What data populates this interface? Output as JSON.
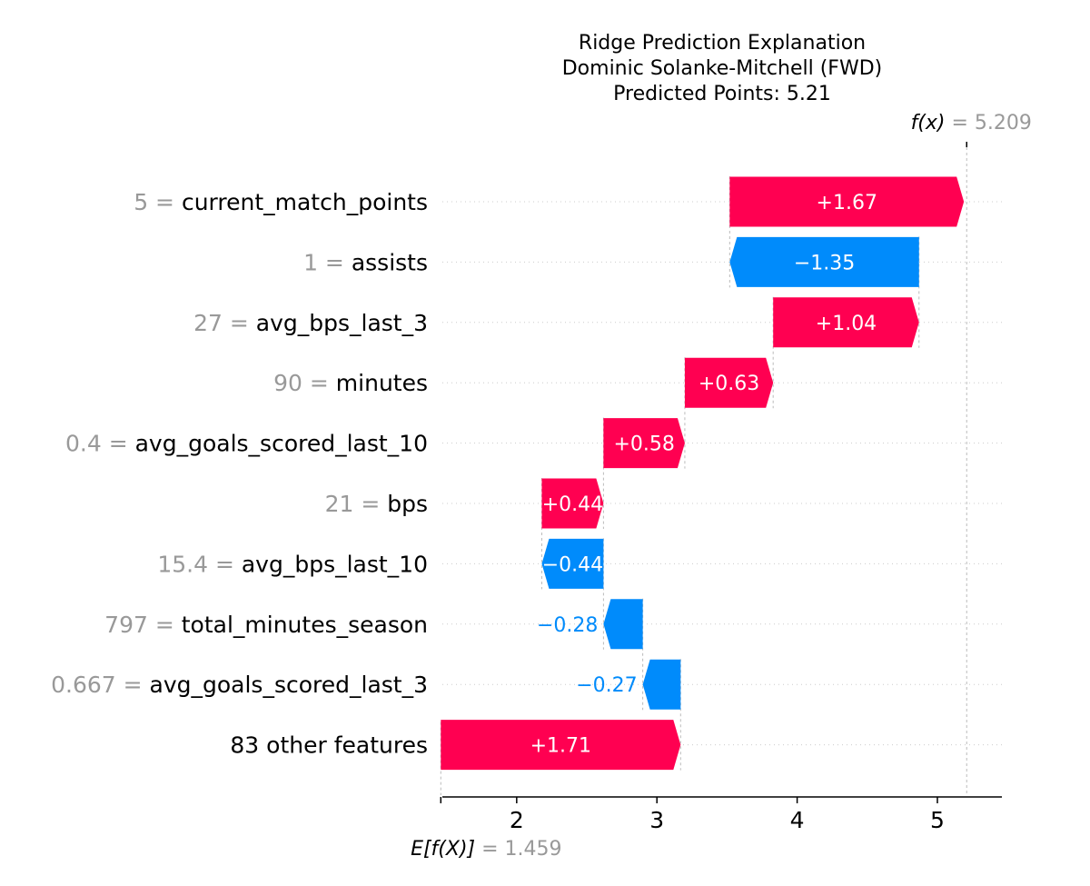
{
  "chart_data": {
    "type": "waterfall",
    "title_lines": [
      "Ridge Prediction Explanation",
      "Dominic Solanke-Mitchell (FWD)",
      "Predicted Points: 5.21"
    ],
    "base_value": 1.459,
    "base_value_label": "1.459",
    "base_label": "E[f(X)]",
    "output_value": 5.209,
    "output_value_label": "5.209",
    "output_label": "f(x)",
    "xlim": [
      1.47,
      5.46
    ],
    "xticks": [
      2,
      3,
      4,
      5
    ],
    "xtick_labels": [
      "2",
      "3",
      "4",
      "5"
    ],
    "features": [
      {
        "value": "5",
        "name": "current_match_points",
        "contribution": 1.67,
        "label": "+1.67"
      },
      {
        "value": "1",
        "name": "assists",
        "contribution": -1.35,
        "label": "−1.35"
      },
      {
        "value": "27",
        "name": "avg_bps_last_3",
        "contribution": 1.04,
        "label": "+1.04"
      },
      {
        "value": "90",
        "name": "minutes",
        "contribution": 0.63,
        "label": "+0.63"
      },
      {
        "value": "0.4",
        "name": "avg_goals_scored_last_10",
        "contribution": 0.58,
        "label": "+0.58"
      },
      {
        "value": "21",
        "name": "bps",
        "contribution": 0.44,
        "label": "+0.44"
      },
      {
        "value": "15.4",
        "name": "avg_bps_last_10",
        "contribution": -0.44,
        "label": "−0.44"
      },
      {
        "value": "797",
        "name": "total_minutes_season",
        "contribution": -0.28,
        "label": "−0.28"
      },
      {
        "value": "0.667",
        "name": "avg_goals_scored_last_3",
        "contribution": -0.27,
        "label": "−0.27"
      },
      {
        "value": "",
        "name": "83 other features",
        "contribution": 1.71,
        "label": "+1.71"
      }
    ],
    "colors": {
      "positive": "#ff0051",
      "negative": "#008bfb",
      "value_text": "#999999",
      "text": "#000000"
    }
  }
}
